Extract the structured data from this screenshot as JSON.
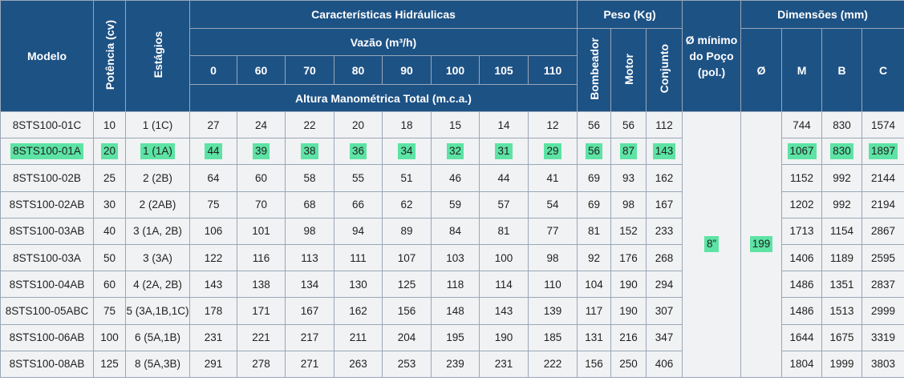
{
  "header": {
    "modelo": "Modelo",
    "potencia": "Potência (cv)",
    "estagios": "Estágios",
    "caracteristicas": "Características Hidráulicas",
    "vazao": "Vazão (m³/h)",
    "flows": [
      "0",
      "60",
      "70",
      "80",
      "90",
      "100",
      "105",
      "110"
    ],
    "altura": "Altura Manométrica Total (m.c.a.)",
    "peso": "Peso (Kg)",
    "bombeador": "Bombeador",
    "motor": "Motor",
    "conjunto": "Conjunto",
    "poco": "Ø mínimo do Poço (pol.)",
    "dimensoes": "Dimensões (mm)",
    "diam": "Ø",
    "m": "M",
    "b": "B",
    "c": "C"
  },
  "poco_value": "8”",
  "diam_value": "199",
  "highlight": {
    "color": "#5de3a4"
  },
  "rows": [
    {
      "modelo": "8STS100-01C",
      "potencia": "10",
      "estagios": "1 (1C)",
      "heads": [
        "27",
        "24",
        "22",
        "20",
        "18",
        "15",
        "14",
        "12"
      ],
      "bombeador": "56",
      "motor": "56",
      "conjunto": "112",
      "m": "744",
      "b": "830",
      "c": "1574"
    },
    {
      "modelo": "8STS100-01A",
      "potencia": "20",
      "estagios": "1 (1A)",
      "heads": [
        "44",
        "39",
        "38",
        "36",
        "34",
        "32",
        "31",
        "29"
      ],
      "bombeador": "56",
      "motor": "87",
      "conjunto": "143",
      "m": "1067",
      "b": "830",
      "c": "1897"
    },
    {
      "modelo": "8STS100-02B",
      "potencia": "25",
      "estagios": "2 (2B)",
      "heads": [
        "64",
        "60",
        "58",
        "55",
        "51",
        "46",
        "44",
        "41"
      ],
      "bombeador": "69",
      "motor": "93",
      "conjunto": "162",
      "m": "1152",
      "b": "992",
      "c": "2144"
    },
    {
      "modelo": "8STS100-02AB",
      "potencia": "30",
      "estagios": "2 (2AB)",
      "heads": [
        "75",
        "70",
        "68",
        "66",
        "62",
        "59",
        "57",
        "54"
      ],
      "bombeador": "69",
      "motor": "98",
      "conjunto": "167",
      "m": "1202",
      "b": "992",
      "c": "2194"
    },
    {
      "modelo": "8STS100-03AB",
      "potencia": "40",
      "estagios": "3 (1A, 2B)",
      "heads": [
        "106",
        "101",
        "98",
        "94",
        "89",
        "84",
        "81",
        "77"
      ],
      "bombeador": "81",
      "motor": "152",
      "conjunto": "233",
      "m": "1713",
      "b": "1154",
      "c": "2867"
    },
    {
      "modelo": "8STS100-03A",
      "potencia": "50",
      "estagios": "3 (3A)",
      "heads": [
        "122",
        "116",
        "113",
        "111",
        "107",
        "103",
        "100",
        "98"
      ],
      "bombeador": "92",
      "motor": "176",
      "conjunto": "268",
      "m": "1406",
      "b": "1189",
      "c": "2595"
    },
    {
      "modelo": "8STS100-04AB",
      "potencia": "60",
      "estagios": "4 (2A, 2B)",
      "heads": [
        "143",
        "138",
        "134",
        "130",
        "125",
        "118",
        "114",
        "110"
      ],
      "bombeador": "104",
      "motor": "190",
      "conjunto": "294",
      "m": "1486",
      "b": "1351",
      "c": "2837"
    },
    {
      "modelo": "8STS100-05ABC",
      "potencia": "75",
      "estagios": "5 (3A,1B,1C)",
      "heads": [
        "178",
        "171",
        "167",
        "162",
        "156",
        "148",
        "143",
        "139"
      ],
      "bombeador": "117",
      "motor": "190",
      "conjunto": "307",
      "m": "1486",
      "b": "1513",
      "c": "2999"
    },
    {
      "modelo": "8STS100-06AB",
      "potencia": "100",
      "estagios": "6 (5A,1B)",
      "heads": [
        "231",
        "221",
        "217",
        "211",
        "204",
        "195",
        "190",
        "185"
      ],
      "bombeador": "131",
      "motor": "216",
      "conjunto": "347",
      "m": "1644",
      "b": "1675",
      "c": "3319"
    },
    {
      "modelo": "8STS100-08AB",
      "potencia": "125",
      "estagios": "8 (5A,3B)",
      "heads": [
        "291",
        "278",
        "271",
        "263",
        "253",
        "239",
        "231",
        "222"
      ],
      "bombeador": "156",
      "motor": "250",
      "conjunto": "406",
      "m": "1804",
      "b": "1999",
      "c": "3803"
    }
  ]
}
